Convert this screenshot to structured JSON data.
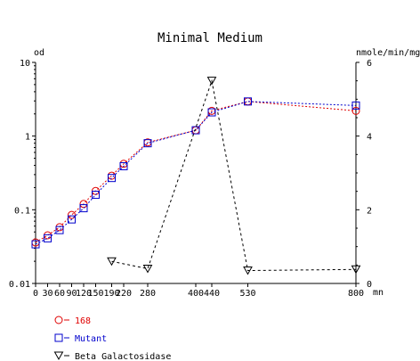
{
  "chart_data": {
    "type": "line",
    "title": "Minimal Medium",
    "x_unit": "mn",
    "y_left_unit": "od",
    "y_right_unit": "nmole/min/mg",
    "x_ticks": [
      0,
      30,
      60,
      90,
      120,
      150,
      190,
      220,
      280,
      400,
      440,
      530,
      800
    ],
    "xlim": [
      0,
      800
    ],
    "y_left_scale": "log",
    "y_left_ticks": [
      "0.01",
      "0.1",
      "1",
      "10"
    ],
    "y_left_lim": [
      0.01,
      10
    ],
    "y_right_ticks": [
      "0",
      "2",
      "4",
      "6"
    ],
    "y_right_lim": [
      0,
      6
    ],
    "grid": false,
    "legend_position": "bottom-left",
    "series": [
      {
        "name": "168",
        "axis": "left",
        "color": "#e00000",
        "marker": "circle",
        "dash": "2,2",
        "x": [
          0,
          30,
          60,
          90,
          120,
          150,
          190,
          220,
          280,
          400,
          440,
          530,
          800
        ],
        "y": [
          0.036,
          0.045,
          0.058,
          0.085,
          0.12,
          0.18,
          0.29,
          0.42,
          0.82,
          1.2,
          2.2,
          2.95,
          2.2
        ]
      },
      {
        "name": "Mutant",
        "axis": "left",
        "color": "#0000cc",
        "marker": "square",
        "dash": "2,2",
        "x": [
          0,
          30,
          60,
          90,
          120,
          150,
          190,
          220,
          280,
          400,
          440,
          530,
          800
        ],
        "y": [
          0.034,
          0.041,
          0.053,
          0.074,
          0.105,
          0.16,
          0.27,
          0.39,
          0.8,
          1.2,
          2.1,
          2.95,
          2.6
        ]
      },
      {
        "name": "Beta Galactosidase",
        "axis": "right",
        "color": "#000000",
        "marker": "triangle-down",
        "dash": "3,3",
        "x": [
          190,
          280,
          440,
          530,
          800
        ],
        "y": [
          0.6,
          0.4,
          5.5,
          0.35,
          0.38
        ]
      }
    ]
  }
}
